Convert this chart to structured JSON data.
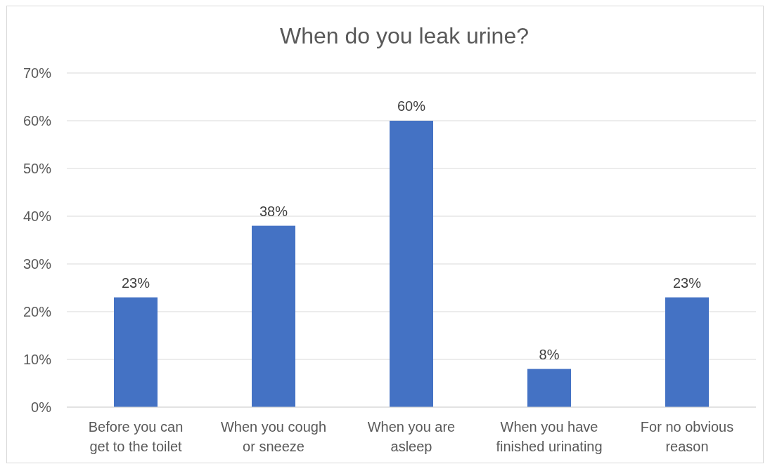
{
  "chart_data": {
    "type": "bar",
    "title": "When do you leak urine?",
    "categories": [
      "Before you can\nget to the toilet",
      "When you cough\nor sneeze",
      "When you are\nasleep",
      "When you have\nfinished urinating",
      "For no obvious\nreason"
    ],
    "values": [
      23,
      38,
      60,
      8,
      23
    ],
    "value_labels": [
      "23%",
      "38%",
      "60%",
      "8%",
      "23%"
    ],
    "color": "#4472c4",
    "ylim": [
      0,
      70
    ],
    "yticks": [
      {
        "value": 0,
        "label": "0%"
      },
      {
        "value": 10,
        "label": "10%"
      },
      {
        "value": 20,
        "label": "20%"
      },
      {
        "value": 30,
        "label": "30%"
      },
      {
        "value": 40,
        "label": "40%"
      },
      {
        "value": 50,
        "label": "50%"
      },
      {
        "value": 60,
        "label": "60%"
      },
      {
        "value": 70,
        "label": "70%"
      }
    ],
    "grid": "y"
  }
}
